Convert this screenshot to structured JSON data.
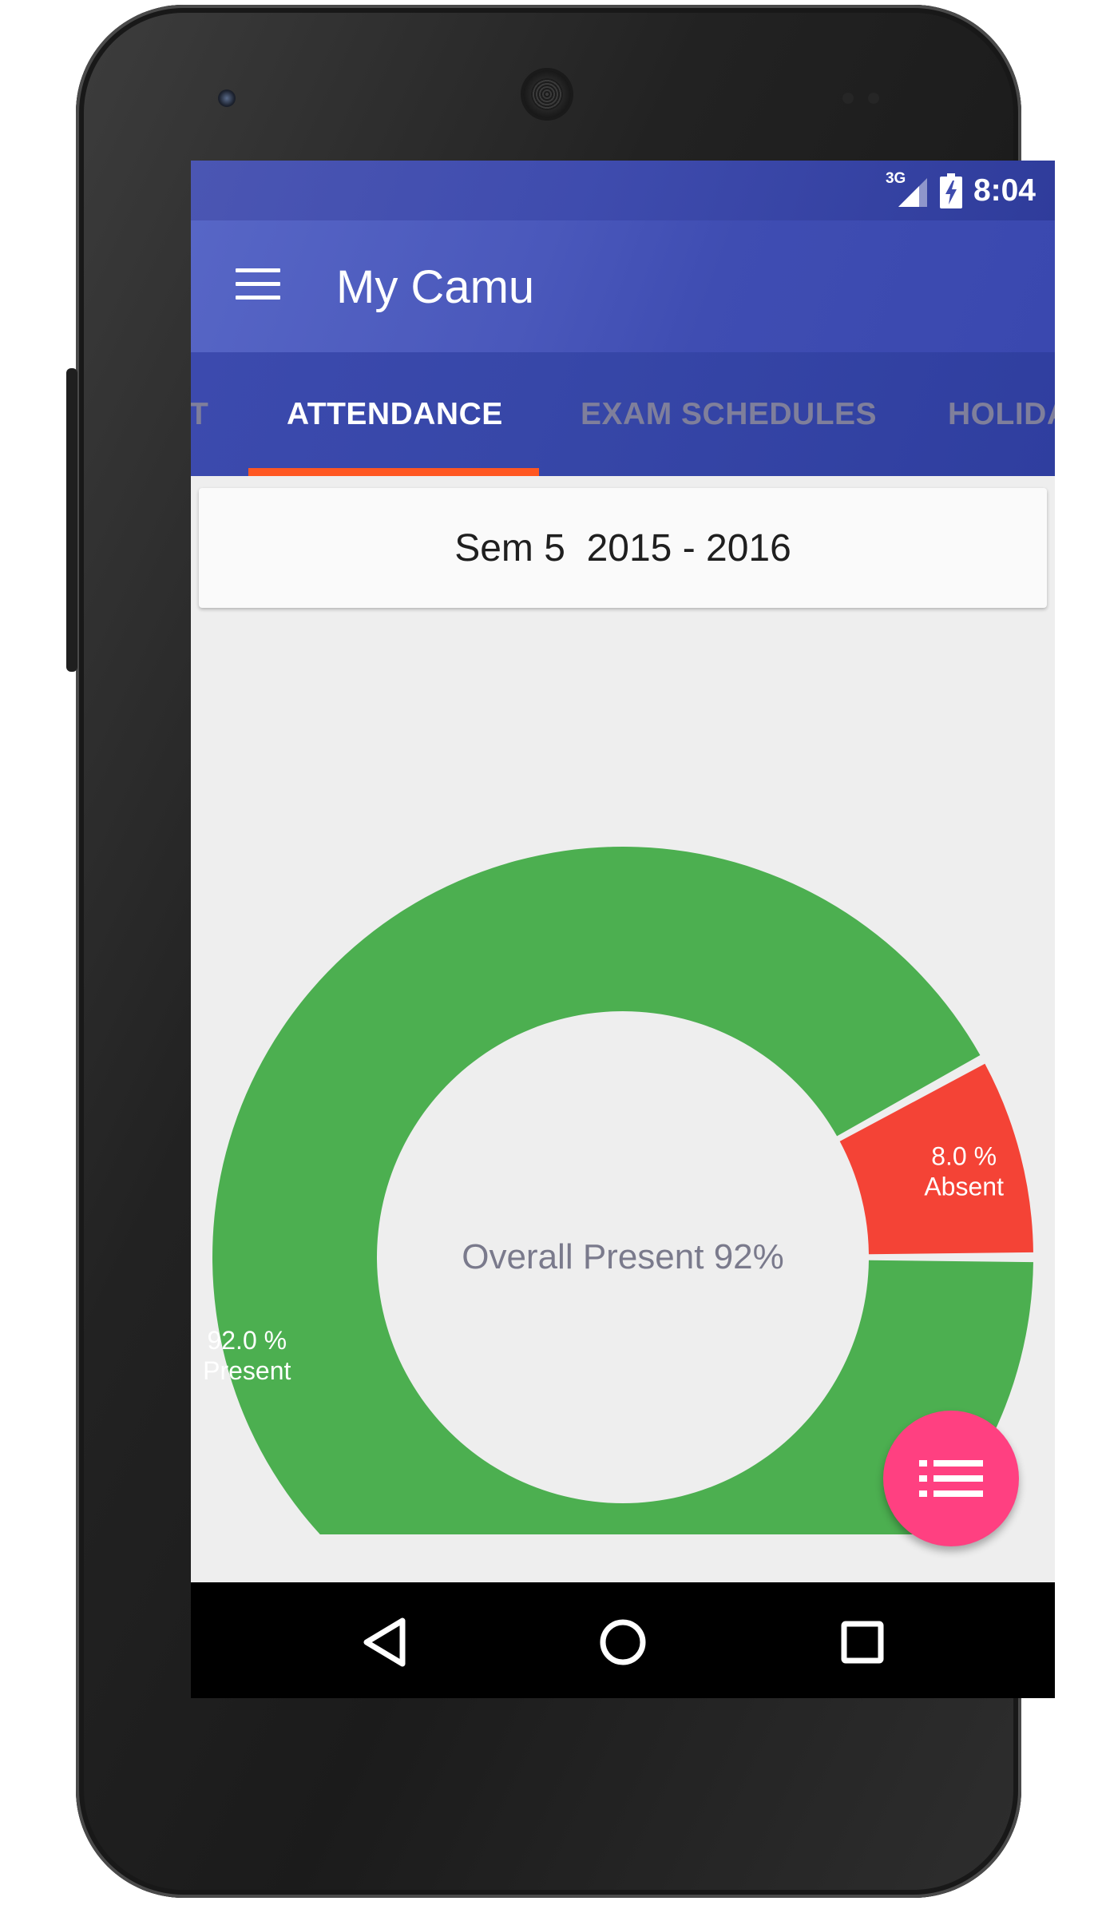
{
  "status_bar": {
    "network": "3G",
    "time": "8:04",
    "icons": [
      "signal-icon",
      "battery-charging-icon"
    ]
  },
  "app_bar": {
    "title": "My Camu",
    "menu_icon": "menu-icon"
  },
  "tabs": [
    {
      "label": "T",
      "active": false
    },
    {
      "label": "ATTENDANCE",
      "active": true
    },
    {
      "label": "EXAM SCHEDULES",
      "active": false
    },
    {
      "label": "HOLIDA",
      "active": false
    }
  ],
  "semester": {
    "label": "Sem 5  2015 - 2016"
  },
  "chart_data": {
    "type": "pie",
    "donut": true,
    "center_label": "Overall Present 92%",
    "slices": [
      {
        "name": "Present",
        "value": 92.0,
        "label_value": "92.0 %",
        "color": "#4caf50"
      },
      {
        "name": "Absent",
        "value": 8.0,
        "label_value": "8.0 %",
        "color": "#f44336"
      }
    ],
    "legend": "none"
  },
  "fab": {
    "icon": "list-icon",
    "color": "#ff4081"
  },
  "nav_bar": {
    "icons": [
      "back-icon",
      "home-icon",
      "recents-icon"
    ]
  },
  "colors": {
    "primary": "#3f51b5",
    "accent": "#ff5722",
    "present": "#4caf50",
    "absent": "#f44336"
  }
}
